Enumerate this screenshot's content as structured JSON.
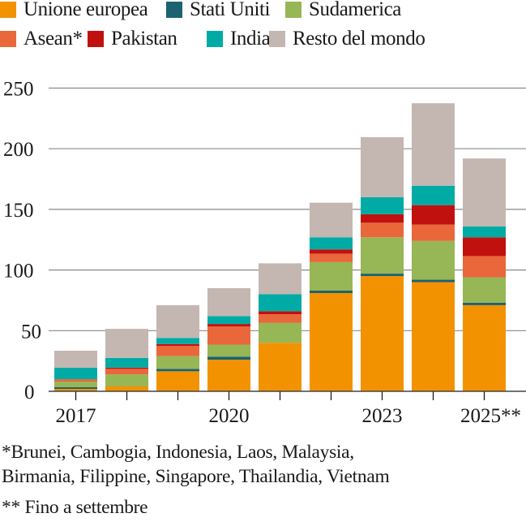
{
  "chart_data": {
    "type": "bar",
    "stacked": true,
    "categories": [
      "2017",
      "2018",
      "2019",
      "2020",
      "2021",
      "2022",
      "2023",
      "2024",
      "2025**"
    ],
    "x_tick_labels": [
      "2017",
      "2020",
      "2023",
      "2025**"
    ],
    "y_ticks": [
      0,
      50,
      100,
      150,
      200,
      250
    ],
    "ylim": [
      0,
      250
    ],
    "grid": true,
    "legend_position": "top",
    "series": [
      {
        "name": "Unione europea",
        "color": "#f39200",
        "values": [
          2,
          4,
          16.5,
          26,
          40,
          81,
          95,
          90,
          71
        ]
      },
      {
        "name": "Stati Uniti",
        "color": "#1d6270",
        "values": [
          1.5,
          0,
          2,
          2.5,
          0,
          2,
          2,
          2,
          2
        ]
      },
      {
        "name": "Sudamerica",
        "color": "#97b655",
        "values": [
          4.5,
          10,
          10.5,
          10,
          16.5,
          23.5,
          30,
          32,
          21
        ]
      },
      {
        "name": "Asean*",
        "color": "#e9673b",
        "values": [
          2,
          4.5,
          8.5,
          15,
          7,
          7,
          12,
          13.5,
          17.5
        ]
      },
      {
        "name": "Pakistan",
        "color": "#c1110f",
        "values": [
          0,
          1,
          1.5,
          2,
          2.5,
          3.5,
          7,
          16,
          15.5
        ]
      },
      {
        "name": "India",
        "color": "#00aba6",
        "values": [
          9.5,
          8,
          5,
          6.5,
          14,
          10,
          14,
          16,
          9
        ]
      },
      {
        "name": "Resto del mondo",
        "color": "#c4b6b1",
        "values": [
          14,
          24,
          27,
          23,
          25.5,
          28.5,
          49.5,
          68,
          56
        ]
      }
    ]
  },
  "footnotes": {
    "line1": "*Brunei, Cambogia, Indonesia, Laos, Malaysia,",
    "line2": "Birmania, Filippine, Singapore, Thailandia, Vietnam",
    "line3": "** Fino a settembre"
  }
}
